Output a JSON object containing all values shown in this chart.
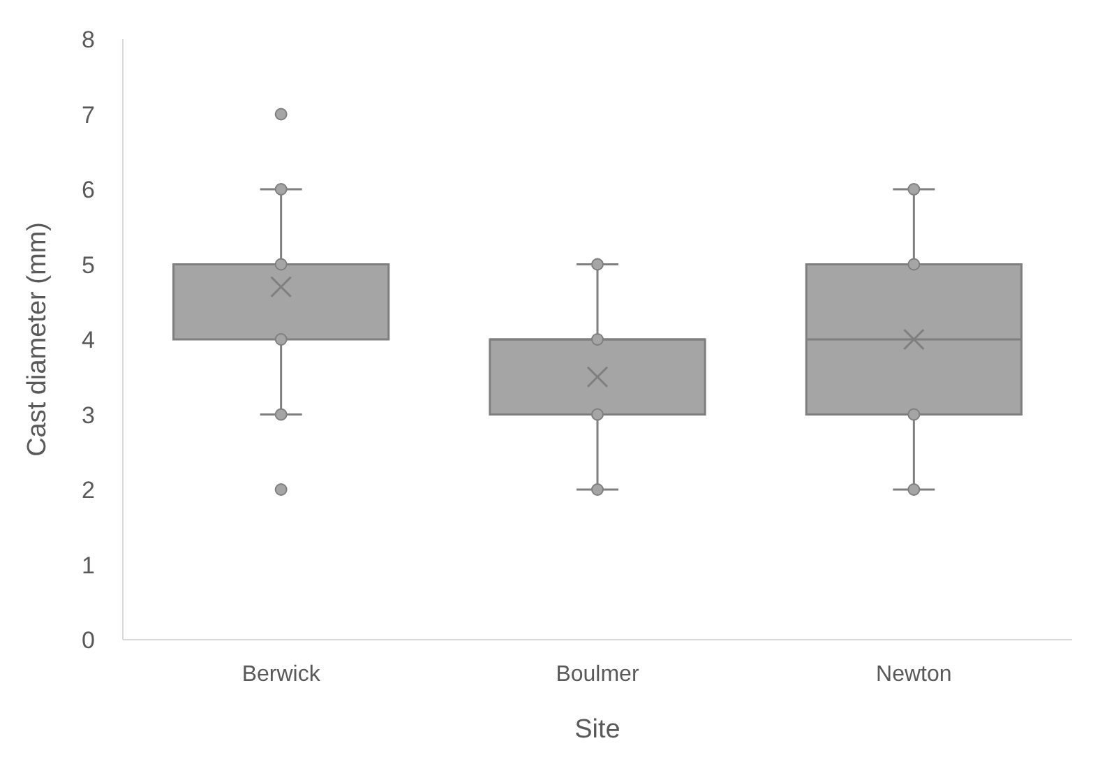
{
  "chart_data": {
    "type": "box",
    "xlabel": "Site",
    "ylabel": "Cast diameter (mm)",
    "categories": [
      "Berwick",
      "Boulmer",
      "Newton"
    ],
    "ylim": [
      0,
      8
    ],
    "yticks": [
      0,
      1,
      2,
      3,
      4,
      5,
      6,
      7,
      8
    ],
    "grid": false,
    "legend": false,
    "marker": "circle",
    "color": "#a5a5a5",
    "boxes": [
      {
        "low": 3,
        "q1": 4,
        "median": 5,
        "q3": 5,
        "high": 6,
        "mean": 4.7,
        "outliers": [
          2,
          7
        ]
      },
      {
        "low": 2,
        "q1": 3,
        "median": 4,
        "q3": 4,
        "high": 5,
        "mean": 3.5
      },
      {
        "low": 2,
        "q1": 3,
        "median": 4,
        "q3": 5,
        "high": 6,
        "mean": 4
      }
    ],
    "series": [
      {
        "type": "scatter",
        "color": "#a5a5a5",
        "x": [
          "Berwick",
          "Berwick",
          "Berwick",
          "Berwick",
          "Boulmer",
          "Boulmer",
          "Boulmer",
          "Boulmer",
          "Newton",
          "Newton",
          "Newton",
          "Newton"
        ],
        "values": [
          3,
          4,
          5,
          6,
          2,
          3,
          4,
          5,
          2,
          3,
          5,
          6
        ]
      }
    ]
  }
}
